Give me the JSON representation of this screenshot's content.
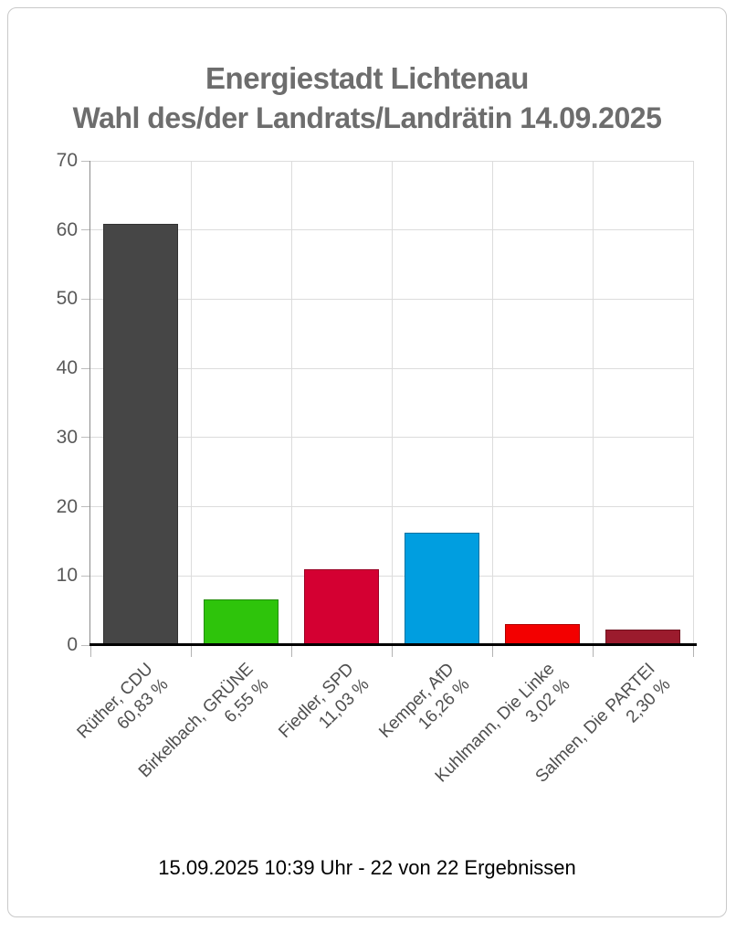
{
  "chart": {
    "title": "Energiestadt Lichtenau",
    "subtitle": "Wahl des/der Landrats/Landrätin 14.09.2025",
    "footer": "15.09.2025 10:39 Uhr - 22 von 22 Ergebnissen"
  },
  "chart_data": {
    "type": "bar",
    "title": "Energiestadt Lichtenau",
    "subtitle": "Wahl des/der Landrats/Landrätin 14.09.2025",
    "categories": [
      "Rüther, CDU",
      "Birkelbach, GRÜNE",
      "Fiedler, SPD",
      "Kemper, AfD",
      "Kuhlmann, Die Linke",
      "Salmen, Die PARTEI"
    ],
    "value_labels": [
      "60,83 %",
      "6,55 %",
      "11,03 %",
      "16,26 %",
      "3,02 %",
      "2,30 %"
    ],
    "values": [
      60.83,
      6.55,
      11.03,
      16.26,
      3.02,
      2.3
    ],
    "bar_colors": [
      "#464646",
      "#2ec40b",
      "#d40032",
      "#009ee0",
      "#f30000",
      "#9b1b2d"
    ],
    "bar_slugs": [
      "ruether-cdu",
      "birkelbach-gruene",
      "fiedler-spd",
      "kemper-afd",
      "kuhlmann-die-linke",
      "salmen-die-partei"
    ],
    "xlabel": "",
    "ylabel": "",
    "ylim": [
      0,
      70
    ],
    "yticks": [
      0,
      10,
      20,
      30,
      40,
      50,
      60,
      70
    ],
    "grid": true,
    "legend": "none",
    "status_line": "15.09.2025 10:39 Uhr - 22 von 22 Ergebnissen"
  }
}
